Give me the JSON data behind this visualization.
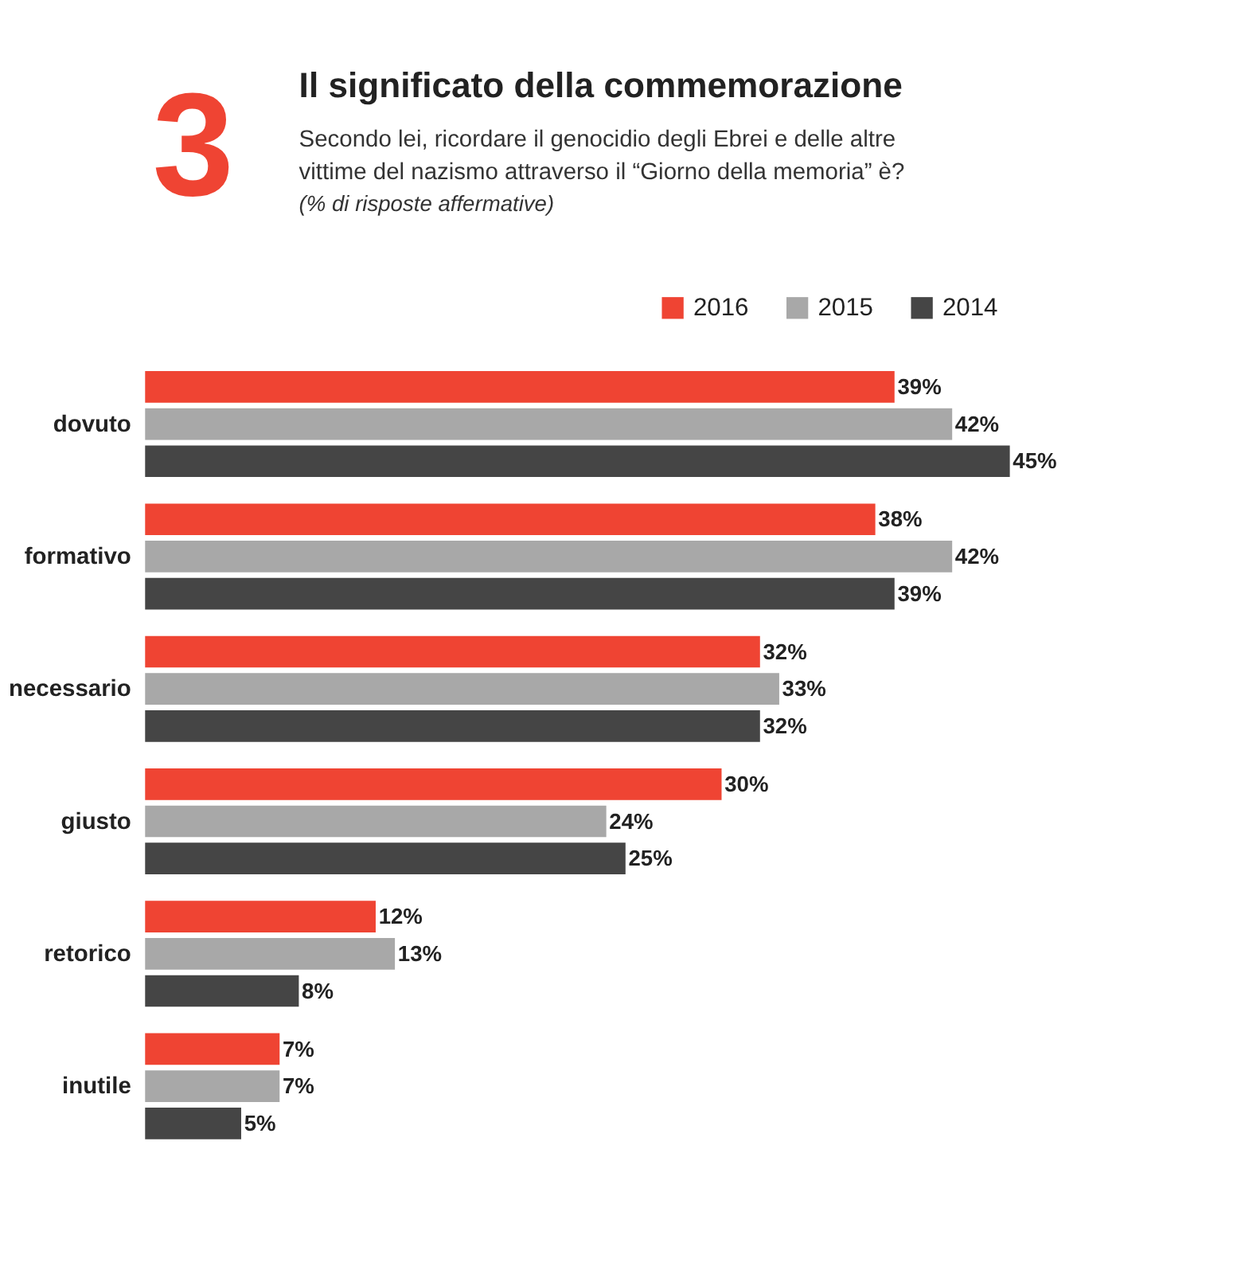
{
  "chart_data": {
    "type": "bar",
    "orientation": "horizontal",
    "title": "Il significato della commemorazione",
    "subtitle": "Secondo lei, ricordare il genocidio degli Ebrei e delle altre vittime del nazismo attraverso il “Giorno della memoria” è?",
    "annotations": [
      "3",
      "(% di risposte affermative)"
    ],
    "categories": [
      "dovuto",
      "formativo",
      "necessario",
      "giusto",
      "retorico",
      "inutile"
    ],
    "series": [
      {
        "name": "2016",
        "color": "#ef4433",
        "values": [
          39,
          38,
          32,
          30,
          12,
          7
        ],
        "value_labels": [
          "39%",
          "38%",
          "32%",
          "30%",
          "12%",
          "7%"
        ]
      },
      {
        "name": "2015",
        "color": "#a8a8a8",
        "values": [
          42,
          42,
          33,
          24,
          13,
          7
        ],
        "value_labels": [
          "42%",
          "42%",
          "33%",
          "24%",
          "13%",
          "7%"
        ]
      },
      {
        "name": "2014",
        "color": "#454545",
        "values": [
          45,
          39,
          32,
          25,
          8,
          5
        ],
        "value_labels": [
          "45%",
          "39%",
          "32%",
          "25%",
          "8%",
          "5%"
        ]
      }
    ],
    "legend": "top right"
  }
}
